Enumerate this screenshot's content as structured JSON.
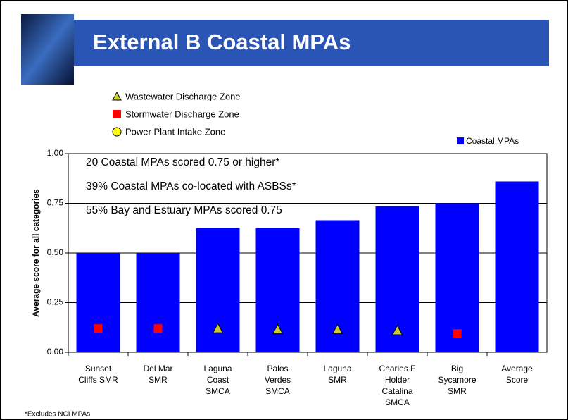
{
  "header": {
    "title": "External B Coastal MPAs"
  },
  "chart_data": {
    "type": "bar",
    "categories": [
      "Sunset\nCliffs SMR",
      "Del Mar\nSMR",
      "Laguna\nCoast\nSMCA",
      "Palos\nVerdes\nSMCA",
      "Laguna\nSMR",
      "Charles F\nHolder\nCatalina\nSMCA",
      "Big\nSycamore\nSMR",
      "Average\nScore"
    ],
    "series": [
      {
        "name": "Coastal MPAs",
        "marker": "bar",
        "color": "#0000ff",
        "values": [
          0.5,
          0.5,
          0.625,
          0.625,
          0.665,
          0.735,
          0.75,
          0.86
        ]
      },
      {
        "name": "Wastewater Discharge Zone",
        "marker": "triangle",
        "color": "#cccc33",
        "values": [
          null,
          null,
          0.12,
          0.115,
          0.115,
          0.11,
          null,
          null
        ]
      },
      {
        "name": "Stormwater Discharge Zone",
        "marker": "square",
        "color": "#ff0000",
        "values": [
          0.12,
          0.12,
          null,
          null,
          null,
          null,
          0.095,
          null
        ]
      },
      {
        "name": "Power Plant Intake Zone",
        "marker": "circle",
        "color": "#ffff00",
        "values": [
          null,
          null,
          null,
          null,
          null,
          null,
          null,
          null
        ]
      }
    ],
    "y_label": "Average score for all categories",
    "ylim": [
      0,
      1
    ],
    "yticks": [
      {
        "value": 0,
        "label": "0.00"
      },
      {
        "value": 0.25,
        "label": "0.25"
      },
      {
        "value": 0.5,
        "label": "0.50"
      },
      {
        "value": 0.75,
        "label": "0.75"
      },
      {
        "value": 1,
        "label": "1.00"
      }
    ],
    "grid": true,
    "annotations": [
      "20 Coastal MPAs scored 0.75 or higher*",
      "39% Coastal MPAs co-located with ASBSs*",
      "55% Bay and Estuary MPAs scored 0.75"
    ],
    "footnote": "*Excludes NCI MPAs"
  }
}
